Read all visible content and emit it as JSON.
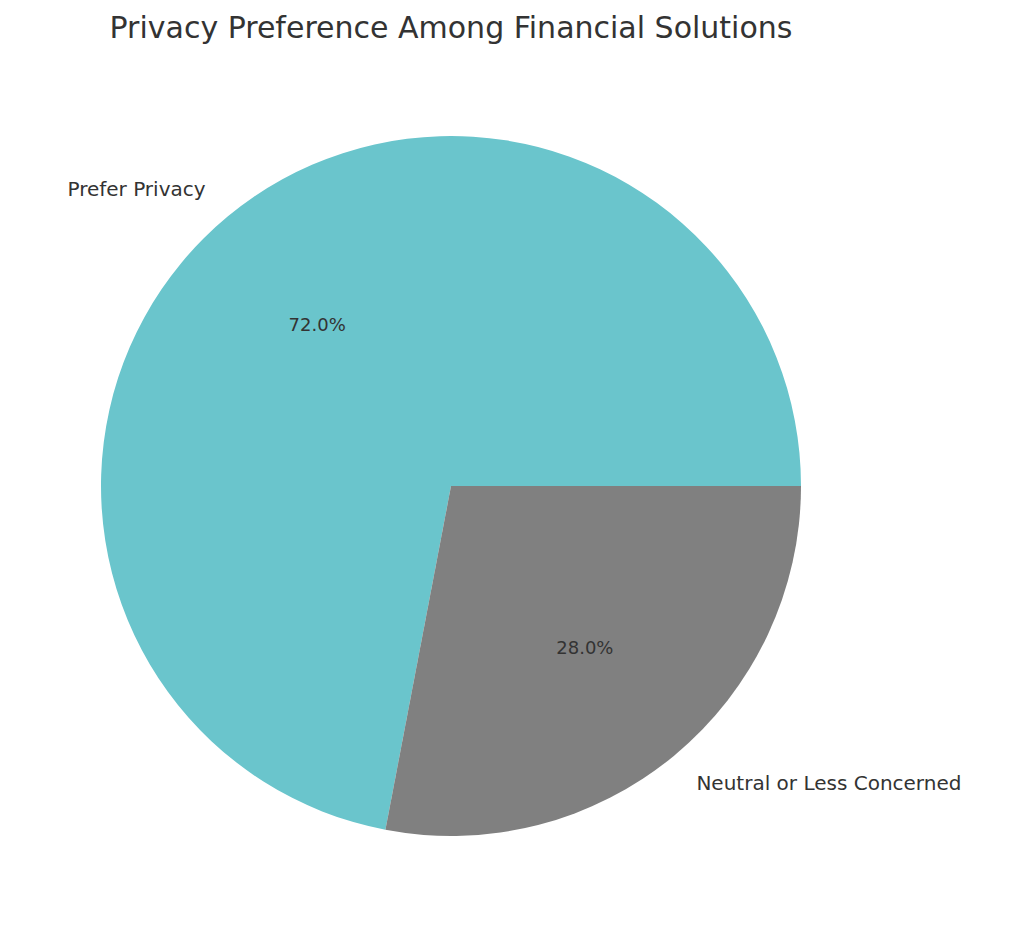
{
  "chart_data": {
    "type": "pie",
    "title": "Privacy Preference Among Financial Solutions",
    "categories": [
      "Prefer Privacy",
      "Neutral or Less Concerned"
    ],
    "values": [
      72,
      28
    ],
    "value_labels": [
      "72.0%",
      "28.0%"
    ],
    "colors": [
      "#6ac5cc",
      "#808080"
    ],
    "data_labels": true
  }
}
